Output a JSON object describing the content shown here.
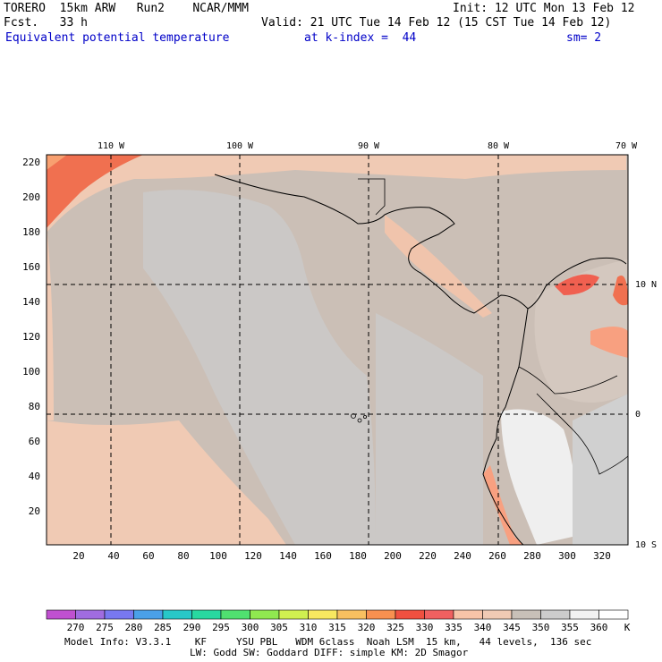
{
  "header": {
    "model": "TORERO  15km ARW   Run2    NCAR/MMM",
    "init": "Init: 12 UTC Mon 13 Feb 12",
    "fcst": "Fcst.   33 h",
    "valid": "Valid: 21 UTC Tue 14 Feb 12 (15 CST Tue 14 Feb 12)",
    "field": "Equivalent potential temperature",
    "level": "at k-index =  44",
    "smooth": "sm= 2"
  },
  "map": {
    "lon_labels": [
      "110 W",
      "100 W",
      "90 W",
      "80 W",
      "70 W"
    ],
    "lat_labels": [
      "10 N",
      "0",
      "10 S"
    ],
    "x_ticks": [
      "20",
      "40",
      "60",
      "80",
      "100",
      "120",
      "140",
      "160",
      "180",
      "200",
      "220",
      "240",
      "260",
      "280",
      "300",
      "320"
    ],
    "y_ticks": [
      "220",
      "200",
      "180",
      "160",
      "140",
      "120",
      "100",
      "80",
      "60",
      "40",
      "20"
    ]
  },
  "colorbar": {
    "labels": [
      "270",
      "275",
      "280",
      "285",
      "290",
      "295",
      "300",
      "305",
      "310",
      "315",
      "320",
      "325",
      "330",
      "335",
      "340",
      "345",
      "350",
      "355",
      "360"
    ],
    "unit": "K",
    "colors": [
      "#c050d0",
      "#a06ce0",
      "#7878f0",
      "#4aa0e8",
      "#28c8c8",
      "#28d8a0",
      "#50e070",
      "#90e850",
      "#d0f050",
      "#f8e860",
      "#f8c060",
      "#f89050",
      "#f05040",
      "#f06060",
      "#f8c4a8",
      "#f0cab4",
      "#c8c0b8",
      "#cccccc",
      "#f2f2f2",
      "#ffffff"
    ]
  },
  "footer": {
    "line1": "Model Info: V3.3.1    KF     YSU PBL   WDM 6class  Noah LSM  15 km,   44 levels,  136 sec",
    "line2": "LW: Godd SW: Goddard DIFF: simple KM: 2D Smagor"
  }
}
